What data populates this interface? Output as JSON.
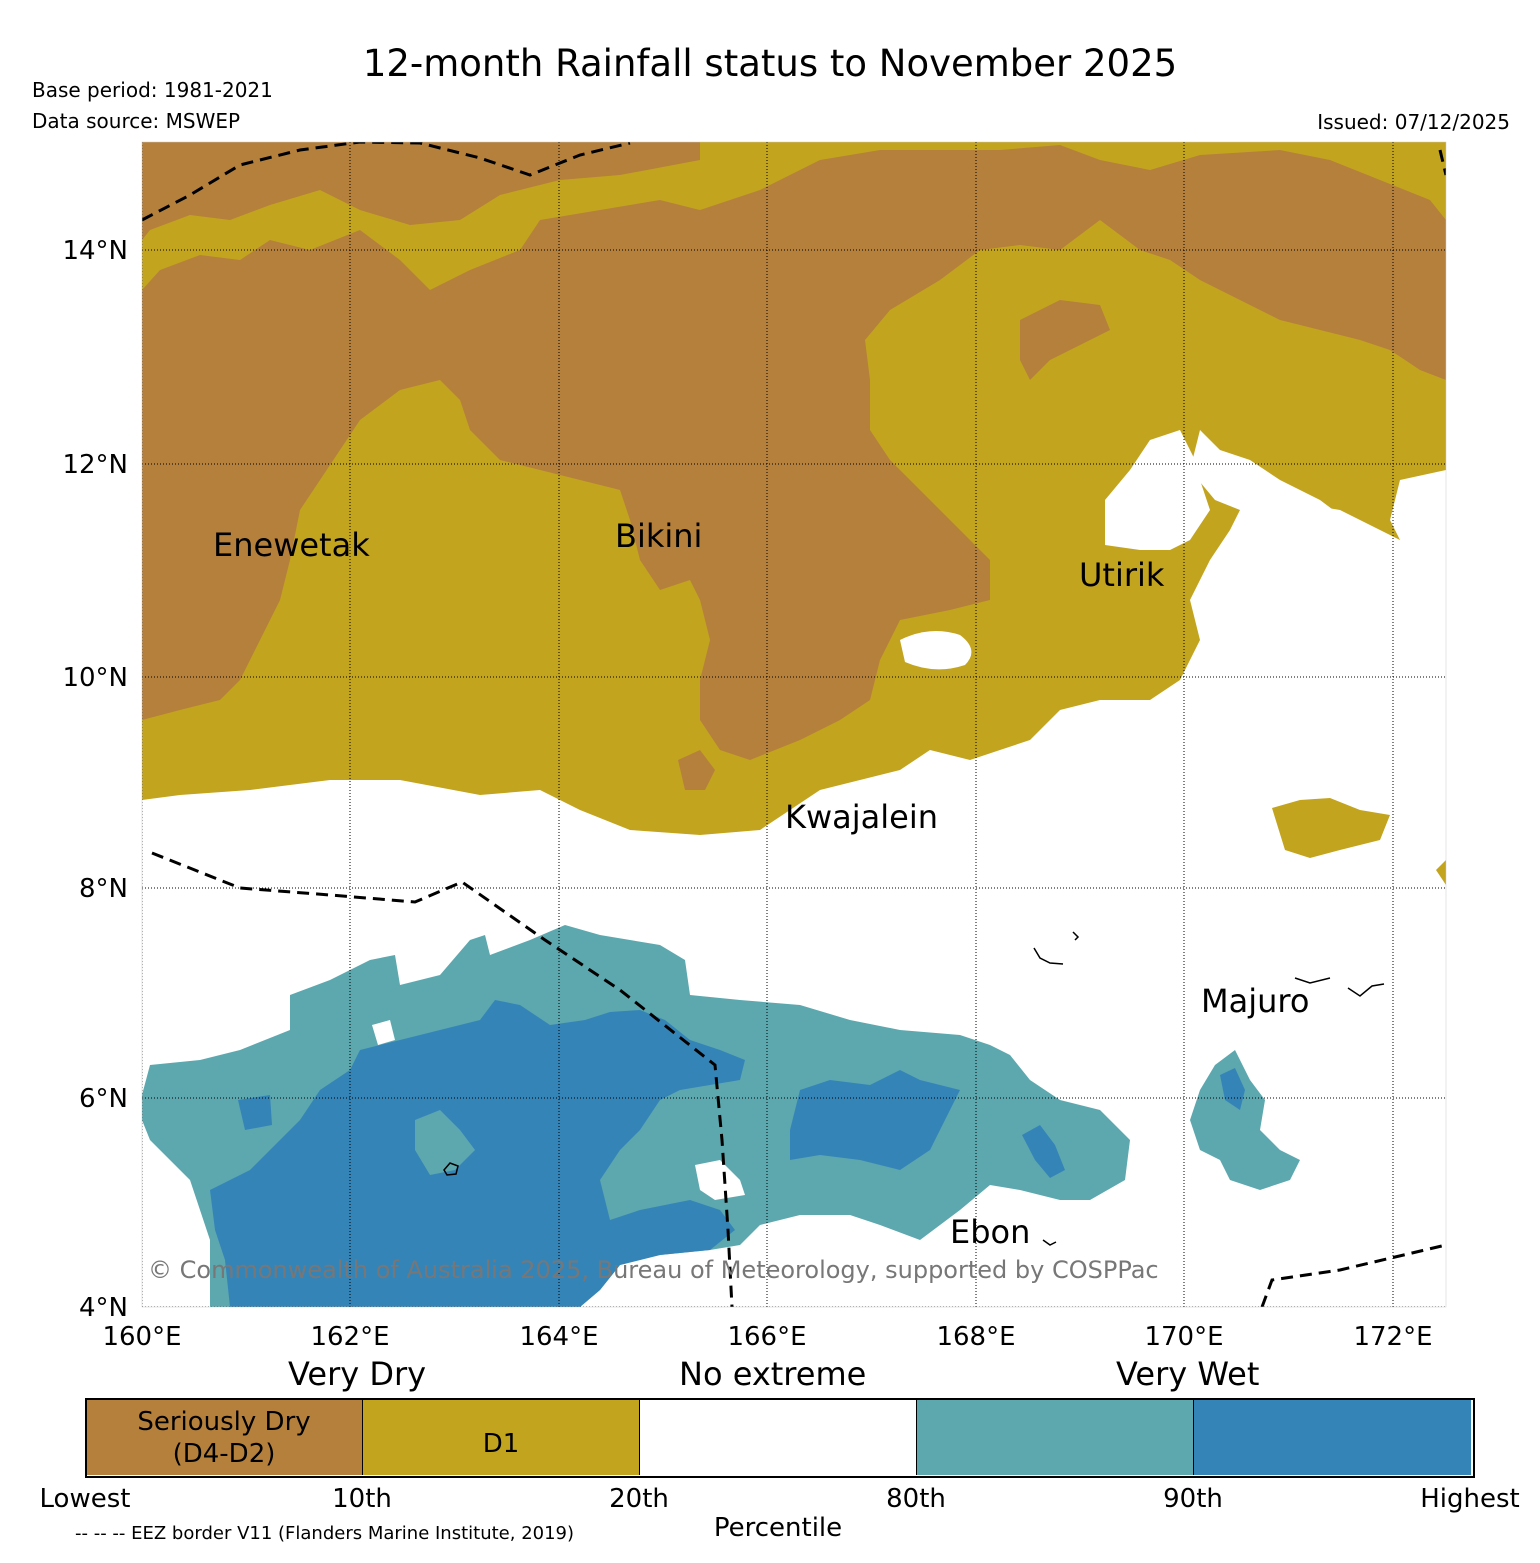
{
  "header": {
    "title": "12-month Rainfall status to November 2025",
    "base_period": "Base period: 1981-2021",
    "data_source": "Data source: MSWEP",
    "issued": "Issued: 07/12/2025"
  },
  "map": {
    "lat_labels": [
      "4°N",
      "6°N",
      "8°N",
      "10°N",
      "12°N",
      "14°N"
    ],
    "lon_labels": [
      "160°E",
      "162°E",
      "164°E",
      "166°E",
      "168°E",
      "170°E",
      "172°E"
    ],
    "places": [
      {
        "name": "Enewetak"
      },
      {
        "name": "Bikini"
      },
      {
        "name": "Utirik"
      },
      {
        "name": "Kwajalein"
      },
      {
        "name": "Majuro"
      },
      {
        "name": "Ebon"
      }
    ],
    "copyright": "© Commonwealth of Australia 2025, Bureau of Meteorology, supported by COSPPac",
    "colors": {
      "seriously_dry": "#b5803c",
      "d1": "#c3a41f",
      "no_extreme": "#ffffff",
      "very_wet_80_90": "#5ca8ae",
      "very_wet_90_plus": "#3584b8"
    }
  },
  "legend": {
    "categories": [
      "Very Dry",
      "No extreme",
      "Very Wet"
    ],
    "boxes": [
      {
        "label_line1": "Seriously Dry",
        "label_line2": "(D4-D2)",
        "color": "#b5803c"
      },
      {
        "label_line1": "D1",
        "label_line2": "",
        "color": "#c3a41f"
      },
      {
        "label_line1": "",
        "label_line2": "",
        "color": "#ffffff"
      },
      {
        "label_line1": "",
        "label_line2": "",
        "color": "#5ca8ae"
      },
      {
        "label_line1": "",
        "label_line2": "",
        "color": "#3584b8"
      }
    ],
    "percentiles": [
      "Lowest",
      "10th",
      "20th",
      "80th",
      "90th",
      "Highest"
    ],
    "axis_label": "Percentile",
    "eez_note": "-- -- -- EEZ border V11 (Flanders Marine Institute, 2019)"
  }
}
